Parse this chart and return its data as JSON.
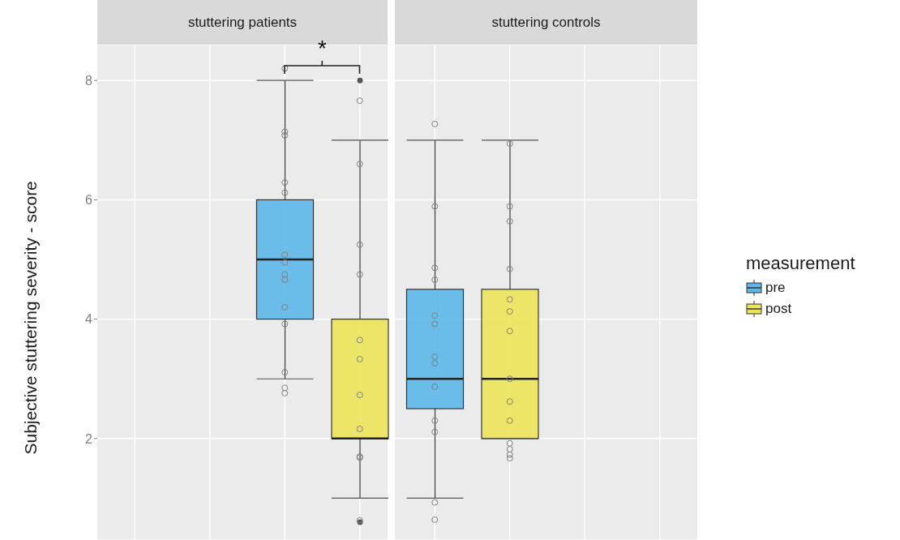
{
  "chart_data": {
    "type": "box",
    "ylabel": "Subjective stuttering severity - score",
    "categories": [
      null,
      null,
      null,
      null,
      null,
      null,
      null,
      null
    ],
    "ylim": [
      0.3,
      8.6
    ],
    "yticks": [
      2,
      4,
      6,
      8
    ],
    "grid": true,
    "tick_labels": "y",
    "legend": "right",
    "legend_title": "measurement",
    "marker": "circle",
    "annotations": [
      "stuttering patients",
      "stuttering controls",
      "*"
    ],
    "series": [
      {
        "name": "pre",
        "color": "#5bb8e8",
        "boxes": [
          null,
          null,
          {
            "low": 3,
            "q1": 4,
            "median": 5,
            "q3": 6,
            "high": 8
          },
          null,
          {
            "low": 1,
            "q1": 2.5,
            "median": 3,
            "q3": 4.5,
            "high": 7
          },
          null,
          null,
          null
        ]
      },
      {
        "name": "post",
        "color": "#ede45a",
        "boxes": [
          null,
          null,
          null,
          {
            "low": 1,
            "q1": 2,
            "median": 2,
            "q3": 4,
            "high": 7,
            "outliers": [
              8,
              0.6
            ]
          },
          null,
          {
            "low": 2,
            "q1": 2,
            "median": 3,
            "q3": 4.5,
            "high": 7
          },
          null,
          null
        ]
      },
      {
        "type": "scatter",
        "color": "#7f7f7f",
        "values": [
          null,
          null,
          8.2,
          7.66,
          7.27,
          6.94,
          null,
          null
        ]
      },
      {
        "type": "scatter",
        "color": "#7f7f7f",
        "values": [
          null,
          null,
          7.14,
          6.6,
          5.89,
          5.89,
          null,
          null
        ]
      },
      {
        "type": "scatter",
        "color": "#7f7f7f",
        "values": [
          null,
          null,
          7.08,
          5.25,
          4.86,
          5.64,
          null,
          null
        ]
      },
      {
        "type": "scatter",
        "color": "#7f7f7f",
        "values": [
          null,
          null,
          6.29,
          4.75,
          4.66,
          4.84,
          null,
          null
        ]
      },
      {
        "type": "scatter",
        "color": "#7f7f7f",
        "values": [
          null,
          null,
          6.12,
          3.65,
          4.06,
          4.33,
          null,
          null
        ]
      },
      {
        "type": "scatter",
        "color": "#7f7f7f",
        "values": [
          null,
          null,
          5.08,
          3.33,
          3.92,
          4.13,
          null,
          null
        ]
      },
      {
        "type": "scatter",
        "color": "#7f7f7f",
        "values": [
          null,
          null,
          4.95,
          2.73,
          3.37,
          3.8,
          null,
          null
        ]
      },
      {
        "type": "scatter",
        "color": "#7f7f7f",
        "values": [
          null,
          null,
          4.75,
          2.16,
          3.26,
          3.0,
          null,
          null
        ]
      },
      {
        "type": "scatter",
        "color": "#7f7f7f",
        "values": [
          null,
          null,
          4.66,
          1.7,
          2.87,
          2.62,
          null,
          null
        ]
      },
      {
        "type": "scatter",
        "color": "#7f7f7f",
        "values": [
          null,
          null,
          4.2,
          1.68,
          2.3,
          2.3,
          null,
          null
        ]
      },
      {
        "type": "scatter",
        "color": "#7f7f7f",
        "values": [
          null,
          null,
          3.92,
          0.63,
          2.11,
          1.92,
          null,
          null
        ]
      },
      {
        "type": "scatter",
        "color": "#7f7f7f",
        "values": [
          null,
          null,
          3.11,
          null,
          0.93,
          1.82,
          null,
          null
        ]
      },
      {
        "type": "scatter",
        "color": "#7f7f7f",
        "values": [
          null,
          null,
          2.85,
          null,
          0.64,
          1.73,
          null,
          null
        ]
      },
      {
        "type": "scatter",
        "color": "#7f7f7f",
        "values": [
          null,
          null,
          2.76,
          null,
          null,
          1.67,
          null,
          null
        ]
      }
    ]
  }
}
